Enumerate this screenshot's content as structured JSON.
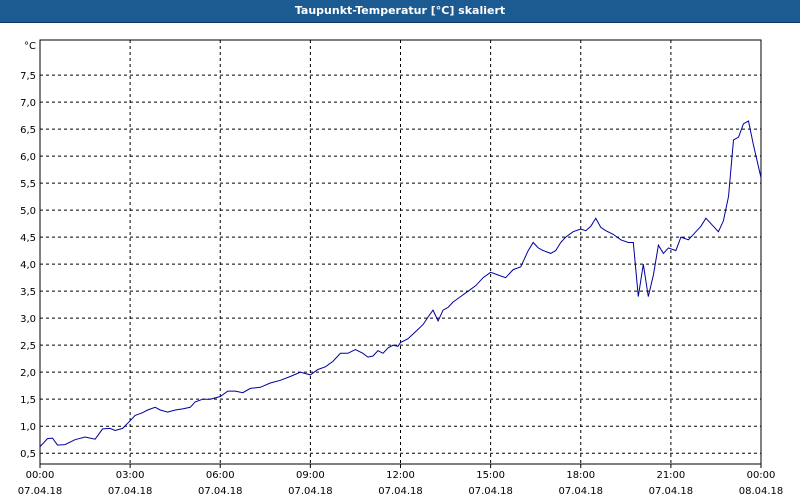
{
  "window": {
    "title": "Taupunkt-Temperatur [°C] skaliert"
  },
  "chart_data": {
    "type": "line",
    "title": "Taupunkt-Temperatur [°C] skaliert",
    "unit_label": "°C",
    "ylim": [
      0.3,
      8.15
    ],
    "xlim_hours": [
      0,
      24
    ],
    "yticks": [
      "0,5",
      "1,0",
      "1,5",
      "2,0",
      "2,5",
      "3,0",
      "3,5",
      "4,0",
      "4,5",
      "5,0",
      "5,5",
      "6,0",
      "6,5",
      "7,0",
      "7,5"
    ],
    "xticks": [
      {
        "time": "00:00",
        "date": "07.04.18"
      },
      {
        "time": "03:00",
        "date": "07.04.18"
      },
      {
        "time": "06:00",
        "date": "07.04.18"
      },
      {
        "time": "09:00",
        "date": "07.04.18"
      },
      {
        "time": "12:00",
        "date": "07.04.18"
      },
      {
        "time": "15:00",
        "date": "07.04.18"
      },
      {
        "time": "18:00",
        "date": "07.04.18"
      },
      {
        "time": "21:00",
        "date": "07.04.18"
      },
      {
        "time": "00:00",
        "date": "08.04.18"
      }
    ],
    "grid": true,
    "line_color": "#0000a0",
    "series": [
      {
        "points": [
          [
            "00:00",
            0.62
          ],
          [
            "00:15",
            0.77
          ],
          [
            "00:25",
            0.78
          ],
          [
            "00:35",
            0.65
          ],
          [
            "00:50",
            0.66
          ],
          [
            "01:10",
            0.75
          ],
          [
            "01:30",
            0.8
          ],
          [
            "01:50",
            0.76
          ],
          [
            "02:05",
            0.95
          ],
          [
            "02:20",
            0.96
          ],
          [
            "02:30",
            0.92
          ],
          [
            "02:45",
            0.96
          ],
          [
            "03:00",
            1.1
          ],
          [
            "03:10",
            1.2
          ],
          [
            "03:25",
            1.25
          ],
          [
            "03:35",
            1.3
          ],
          [
            "03:50",
            1.35
          ],
          [
            "04:00",
            1.3
          ],
          [
            "04:15",
            1.26
          ],
          [
            "04:30",
            1.3
          ],
          [
            "04:45",
            1.32
          ],
          [
            "05:00",
            1.35
          ],
          [
            "05:10",
            1.45
          ],
          [
            "05:25",
            1.5
          ],
          [
            "05:40",
            1.5
          ],
          [
            "06:00",
            1.55
          ],
          [
            "06:15",
            1.65
          ],
          [
            "06:30",
            1.65
          ],
          [
            "06:45",
            1.62
          ],
          [
            "07:00",
            1.7
          ],
          [
            "07:20",
            1.72
          ],
          [
            "07:40",
            1.8
          ],
          [
            "08:00",
            1.85
          ],
          [
            "08:20",
            1.92
          ],
          [
            "08:40",
            2.0
          ],
          [
            "09:00",
            1.95
          ],
          [
            "09:15",
            2.05
          ],
          [
            "09:30",
            2.1
          ],
          [
            "09:45",
            2.2
          ],
          [
            "10:00",
            2.35
          ],
          [
            "10:15",
            2.35
          ],
          [
            "10:30",
            2.42
          ],
          [
            "10:45",
            2.35
          ],
          [
            "10:55",
            2.28
          ],
          [
            "11:05",
            2.3
          ],
          [
            "11:15",
            2.4
          ],
          [
            "11:25",
            2.35
          ],
          [
            "11:35",
            2.45
          ],
          [
            "11:45",
            2.5
          ],
          [
            "11:55",
            2.48
          ],
          [
            "12:00",
            2.55
          ],
          [
            "12:15",
            2.62
          ],
          [
            "12:30",
            2.75
          ],
          [
            "12:45",
            2.88
          ],
          [
            "12:55",
            3.02
          ],
          [
            "13:05",
            3.15
          ],
          [
            "13:15",
            2.95
          ],
          [
            "13:25",
            3.15
          ],
          [
            "13:35",
            3.2
          ],
          [
            "13:45",
            3.3
          ],
          [
            "14:00",
            3.4
          ],
          [
            "14:15",
            3.5
          ],
          [
            "14:30",
            3.6
          ],
          [
            "14:45",
            3.75
          ],
          [
            "15:00",
            3.85
          ],
          [
            "15:15",
            3.8
          ],
          [
            "15:30",
            3.75
          ],
          [
            "15:45",
            3.9
          ],
          [
            "16:00",
            3.95
          ],
          [
            "16:15",
            4.25
          ],
          [
            "16:25",
            4.4
          ],
          [
            "16:35",
            4.3
          ],
          [
            "16:45",
            4.25
          ],
          [
            "17:00",
            4.2
          ],
          [
            "17:10",
            4.25
          ],
          [
            "17:20",
            4.4
          ],
          [
            "17:30",
            4.5
          ],
          [
            "17:45",
            4.6
          ],
          [
            "18:00",
            4.65
          ],
          [
            "18:10",
            4.62
          ],
          [
            "18:20",
            4.7
          ],
          [
            "18:30",
            4.85
          ],
          [
            "18:40",
            4.68
          ],
          [
            "18:50",
            4.62
          ],
          [
            "19:05",
            4.55
          ],
          [
            "19:20",
            4.45
          ],
          [
            "19:35",
            4.4
          ],
          [
            "19:45",
            4.4
          ],
          [
            "19:55",
            3.4
          ],
          [
            "20:05",
            4.0
          ],
          [
            "20:15",
            3.4
          ],
          [
            "20:25",
            3.8
          ],
          [
            "20:35",
            4.35
          ],
          [
            "20:45",
            4.2
          ],
          [
            "20:55",
            4.3
          ],
          [
            "21:10",
            4.25
          ],
          [
            "21:20",
            4.5
          ],
          [
            "21:35",
            4.45
          ],
          [
            "21:50",
            4.6
          ],
          [
            "22:00",
            4.7
          ],
          [
            "22:10",
            4.85
          ],
          [
            "22:25",
            4.7
          ],
          [
            "22:35",
            4.6
          ],
          [
            "22:45",
            4.8
          ],
          [
            "22:55",
            5.25
          ],
          [
            "23:05",
            6.3
          ],
          [
            "23:15",
            6.35
          ],
          [
            "23:25",
            6.6
          ],
          [
            "23:35",
            6.65
          ],
          [
            "23:45",
            6.2
          ],
          [
            "23:55",
            5.8
          ],
          [
            "24:00",
            5.6
          ]
        ]
      }
    ]
  }
}
